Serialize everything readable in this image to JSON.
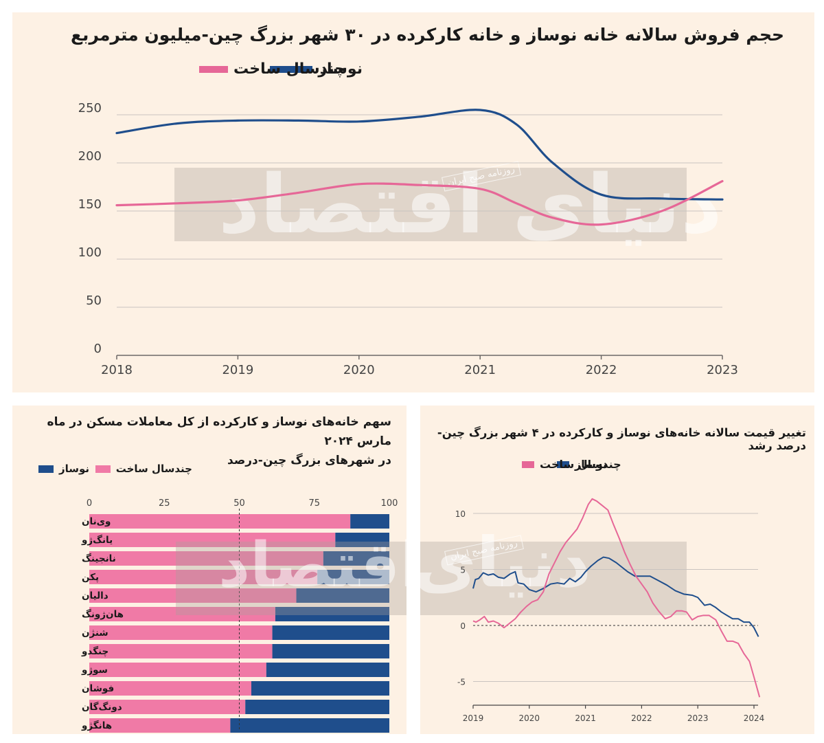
{
  "colors": {
    "new": "#1f4e8c",
    "old": "#e66797",
    "grid": "#c9c4bf",
    "text": "#1a1a1a",
    "bg": "#fdf1e4"
  },
  "watermark": {
    "logo": "دنیای اقتصاد",
    "tag": "روزنامه صبح ایران"
  },
  "chart_data": [
    {
      "type": "line",
      "title": "حجم فروش سالانه خانه نوساز و خانه کارکرده در ۳۰ شهر بزرگ چین-میلیون مترمربع",
      "x": [
        2018,
        2018.5,
        2019,
        2019.5,
        2020,
        2020.5,
        2021,
        2021.3,
        2021.6,
        2022,
        2022.5,
        2023
      ],
      "x_ticks": [
        "2018",
        "2019",
        "2020",
        "2021",
        "2022",
        "2023"
      ],
      "y_ticks": [
        "0",
        "50",
        "100",
        "150",
        "200",
        "250"
      ],
      "ylim": [
        0,
        250
      ],
      "series": [
        {
          "name": "نوساز",
          "values": [
            231,
            241,
            244,
            244,
            243,
            248,
            255,
            240,
            200,
            167,
            163,
            162
          ]
        },
        {
          "name": "چندسال ساخت",
          "values": [
            156,
            158,
            161,
            169,
            178,
            177,
            173,
            158,
            143,
            136,
            150,
            181
          ]
        }
      ]
    },
    {
      "type": "bar",
      "title": "سهم خانه‌های نوساز و کارکرده از کل معاملات مسکن در ماه مارس ۲۰۲۴ در شهرهای بزرگ چین-درصد",
      "title_lines": [
        "سهم خانه‌های نوساز و کارکرده از کل معاملات مسکن در ماه مارس ۲۰۲۴",
        "در شهرهای بزرگ چین-درصد"
      ],
      "categories": [
        "وی‌نان",
        "یانگ‌ژو",
        "نانجینگ",
        "پکن",
        "دالیان",
        "هان‌ژونگ",
        "شنژن",
        "چنگدو",
        "سوژو",
        "فوشان",
        "دونگ‌گان",
        "هانگژو"
      ],
      "series": [
        {
          "name": "چندسال ساخت",
          "values": [
            87,
            82,
            78,
            76,
            69,
            62,
            61,
            61,
            59,
            54,
            52,
            47
          ]
        },
        {
          "name": "نوساز",
          "values": [
            13,
            18,
            22,
            24,
            31,
            38,
            39,
            39,
            41,
            46,
            48,
            53
          ]
        }
      ],
      "x_ticks": [
        "0",
        "25",
        "50",
        "75",
        "100"
      ],
      "xlim": [
        0,
        100
      ],
      "reference_line": 50
    },
    {
      "type": "line",
      "title": "تغییر قیمت سالانه خانه‌های نوساز و کارکرده در ۴ شهر بزرگ چین-درصد رشد",
      "x_ticks": [
        "2019",
        "2020",
        "2021",
        "2022",
        "2023",
        "2024"
      ],
      "y_ticks": [
        "-5",
        "0",
        "5",
        "10"
      ],
      "xlim": [
        2019,
        2024.1
      ],
      "ylim": [
        -7.2,
        11.5
      ],
      "series": [
        {
          "name": "نوساز",
          "points": [
            [
              2019,
              3.3
            ],
            [
              2019.04,
              4.1
            ],
            [
              2019.1,
              4.2
            ],
            [
              2019.18,
              4.7
            ],
            [
              2019.27,
              4.5
            ],
            [
              2019.36,
              4.6
            ],
            [
              2019.45,
              4.3
            ],
            [
              2019.55,
              4.2
            ],
            [
              2019.66,
              4.6
            ],
            [
              2019.75,
              4.8
            ],
            [
              2019.8,
              3.8
            ],
            [
              2019.9,
              3.7
            ],
            [
              2020.0,
              3.2
            ],
            [
              2020.12,
              3.0
            ],
            [
              2020.25,
              3.3
            ],
            [
              2020.38,
              3.7
            ],
            [
              2020.5,
              3.8
            ],
            [
              2020.62,
              3.7
            ],
            [
              2020.72,
              4.2
            ],
            [
              2020.82,
              3.9
            ],
            [
              2020.92,
              4.3
            ],
            [
              2021.0,
              4.8
            ],
            [
              2021.1,
              5.3
            ],
            [
              2021.22,
              5.8
            ],
            [
              2021.32,
              6.1
            ],
            [
              2021.42,
              6.0
            ],
            [
              2021.55,
              5.6
            ],
            [
              2021.65,
              5.2
            ],
            [
              2021.75,
              4.8
            ],
            [
              2021.88,
              4.4
            ],
            [
              2022.0,
              4.4
            ],
            [
              2022.15,
              4.4
            ],
            [
              2022.3,
              4.0
            ],
            [
              2022.45,
              3.6
            ],
            [
              2022.6,
              3.1
            ],
            [
              2022.75,
              2.8
            ],
            [
              2022.9,
              2.7
            ],
            [
              2023.0,
              2.5
            ],
            [
              2023.12,
              1.8
            ],
            [
              2023.22,
              1.9
            ],
            [
              2023.32,
              1.6
            ],
            [
              2023.42,
              1.2
            ],
            [
              2023.52,
              0.9
            ],
            [
              2023.62,
              0.6
            ],
            [
              2023.72,
              0.6
            ],
            [
              2023.82,
              0.3
            ],
            [
              2023.92,
              0.3
            ],
            [
              2024.0,
              -0.2
            ],
            [
              2024.08,
              -1.0
            ]
          ]
        },
        {
          "name": "چندسال ساخت",
          "points": [
            [
              2019,
              0.4
            ],
            [
              2019.05,
              0.3
            ],
            [
              2019.12,
              0.5
            ],
            [
              2019.2,
              0.8
            ],
            [
              2019.27,
              0.3
            ],
            [
              2019.36,
              0.4
            ],
            [
              2019.45,
              0.2
            ],
            [
              2019.55,
              -0.2
            ],
            [
              2019.65,
              0.2
            ],
            [
              2019.75,
              0.6
            ],
            [
              2019.85,
              1.2
            ],
            [
              2019.95,
              1.7
            ],
            [
              2020.05,
              2.1
            ],
            [
              2020.15,
              2.3
            ],
            [
              2020.25,
              3.0
            ],
            [
              2020.35,
              4.6
            ],
            [
              2020.45,
              5.6
            ],
            [
              2020.55,
              6.6
            ],
            [
              2020.65,
              7.4
            ],
            [
              2020.75,
              8.0
            ],
            [
              2020.85,
              8.6
            ],
            [
              2020.95,
              9.6
            ],
            [
              2021.05,
              10.8
            ],
            [
              2021.12,
              11.3
            ],
            [
              2021.2,
              11.1
            ],
            [
              2021.3,
              10.7
            ],
            [
              2021.4,
              10.3
            ],
            [
              2021.5,
              9.0
            ],
            [
              2021.6,
              7.8
            ],
            [
              2021.7,
              6.5
            ],
            [
              2021.8,
              5.4
            ],
            [
              2021.9,
              4.4
            ],
            [
              2022.0,
              3.7
            ],
            [
              2022.1,
              3.0
            ],
            [
              2022.2,
              2.0
            ],
            [
              2022.3,
              1.3
            ],
            [
              2022.42,
              0.6
            ],
            [
              2022.52,
              0.8
            ],
            [
              2022.62,
              1.3
            ],
            [
              2022.72,
              1.3
            ],
            [
              2022.8,
              1.2
            ],
            [
              2022.9,
              0.5
            ],
            [
              2023.0,
              0.8
            ],
            [
              2023.1,
              0.9
            ],
            [
              2023.2,
              0.9
            ],
            [
              2023.32,
              0.5
            ],
            [
              2023.42,
              -0.5
            ],
            [
              2023.52,
              -1.4
            ],
            [
              2023.62,
              -1.4
            ],
            [
              2023.72,
              -1.6
            ],
            [
              2023.82,
              -2.5
            ],
            [
              2023.92,
              -3.2
            ],
            [
              2024.0,
              -4.6
            ],
            [
              2024.1,
              -6.4
            ]
          ]
        }
      ]
    }
  ]
}
